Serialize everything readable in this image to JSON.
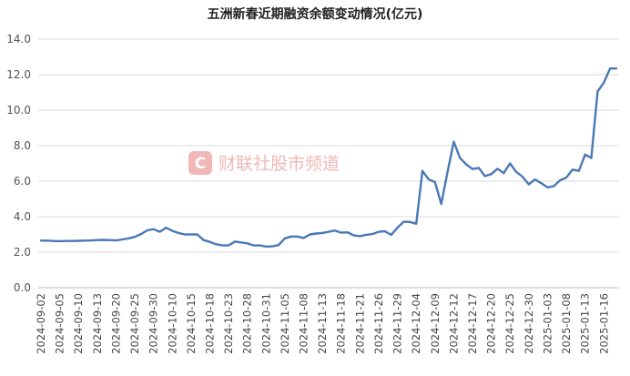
{
  "chart_data": {
    "type": "line",
    "title": "五洲新春近期融资余额变动情况(亿元)",
    "xlabel": "",
    "ylabel": "",
    "ylim": [
      0,
      14
    ],
    "yticks": [
      "0.0",
      "2.0",
      "4.0",
      "6.0",
      "8.0",
      "10.0",
      "12.0",
      "14.0"
    ],
    "grid": true,
    "color": "#4a78b5",
    "x": [
      "2024-09-02",
      "2024-09-03",
      "2024-09-04",
      "2024-09-05",
      "2024-09-06",
      "2024-09-09",
      "2024-09-10",
      "2024-09-11",
      "2024-09-12",
      "2024-09-13",
      "2024-09-18",
      "2024-09-19",
      "2024-09-20",
      "2024-09-23",
      "2024-09-24",
      "2024-09-25",
      "2024-09-26",
      "2024-09-27",
      "2024-09-30",
      "2024-10-08",
      "2024-10-09",
      "2024-10-10",
      "2024-10-11",
      "2024-10-14",
      "2024-10-15",
      "2024-10-16",
      "2024-10-17",
      "2024-10-18",
      "2024-10-21",
      "2024-10-22",
      "2024-10-23",
      "2024-10-24",
      "2024-10-25",
      "2024-10-28",
      "2024-10-29",
      "2024-10-30",
      "2024-10-31",
      "2024-11-01",
      "2024-11-04",
      "2024-11-05",
      "2024-11-06",
      "2024-11-07",
      "2024-11-08",
      "2024-11-11",
      "2024-11-12",
      "2024-11-13",
      "2024-11-14",
      "2024-11-15",
      "2024-11-18",
      "2024-11-19",
      "2024-11-20",
      "2024-11-21",
      "2024-11-22",
      "2024-11-25",
      "2024-11-26",
      "2024-11-27",
      "2024-11-28",
      "2024-11-29",
      "2024-12-02",
      "2024-12-03",
      "2024-12-04",
      "2024-12-05",
      "2024-12-06",
      "2024-12-09",
      "2024-12-10",
      "2024-12-11",
      "2024-12-12",
      "2024-12-13",
      "2024-12-16",
      "2024-12-17",
      "2024-12-18",
      "2024-12-19",
      "2024-12-20",
      "2024-12-23",
      "2024-12-24",
      "2024-12-25",
      "2024-12-26",
      "2024-12-27",
      "2024-12-30",
      "2024-12-31",
      "2025-01-02",
      "2025-01-03",
      "2025-01-06",
      "2025-01-07",
      "2025-01-08",
      "2025-01-09",
      "2025-01-10",
      "2025-01-13",
      "2025-01-14",
      "2025-01-15",
      "2025-01-16",
      "2025-01-17",
      "2025-01-20"
    ],
    "xticks": [
      "2024-09-02",
      "2024-09-05",
      "2024-09-10",
      "2024-09-13",
      "2024-09-20",
      "2024-09-25",
      "2024-09-30",
      "2024-10-10",
      "2024-10-15",
      "2024-10-18",
      "2024-10-23",
      "2024-10-28",
      "2024-10-31",
      "2024-11-05",
      "2024-11-08",
      "2024-11-13",
      "2024-11-18",
      "2024-11-21",
      "2024-11-26",
      "2024-11-29",
      "2024-12-04",
      "2024-12-09",
      "2024-12-12",
      "2024-12-17",
      "2024-12-20",
      "2024-12-25",
      "2024-12-30",
      "2025-01-03",
      "2025-01-08",
      "2025-01-13",
      "2025-01-16"
    ],
    "values": [
      2.65,
      2.65,
      2.63,
      2.62,
      2.63,
      2.63,
      2.64,
      2.65,
      2.66,
      2.68,
      2.69,
      2.68,
      2.66,
      2.72,
      2.78,
      2.86,
      3.02,
      3.23,
      3.3,
      3.15,
      3.38,
      3.2,
      3.08,
      3.0,
      3.0,
      3.0,
      2.68,
      2.58,
      2.45,
      2.38,
      2.38,
      2.6,
      2.55,
      2.5,
      2.38,
      2.38,
      2.32,
      2.33,
      2.4,
      2.78,
      2.88,
      2.88,
      2.8,
      3.0,
      3.05,
      3.08,
      3.15,
      3.22,
      3.1,
      3.12,
      2.95,
      2.9,
      2.98,
      3.02,
      3.15,
      3.18,
      2.98,
      3.38,
      3.72,
      3.7,
      3.6,
      6.58,
      6.1,
      5.95,
      4.72,
      6.5,
      8.22,
      7.3,
      6.95,
      6.68,
      6.75,
      6.28,
      6.4,
      6.7,
      6.45,
      7.0,
      6.52,
      6.25,
      5.82,
      6.1,
      5.88,
      5.65,
      5.72,
      6.05,
      6.2,
      6.65,
      6.58,
      7.5,
      7.3,
      11.05,
      11.55,
      12.35,
      12.35
    ]
  },
  "watermark": {
    "logo_glyph": "C",
    "text": "财联社股市频道"
  }
}
